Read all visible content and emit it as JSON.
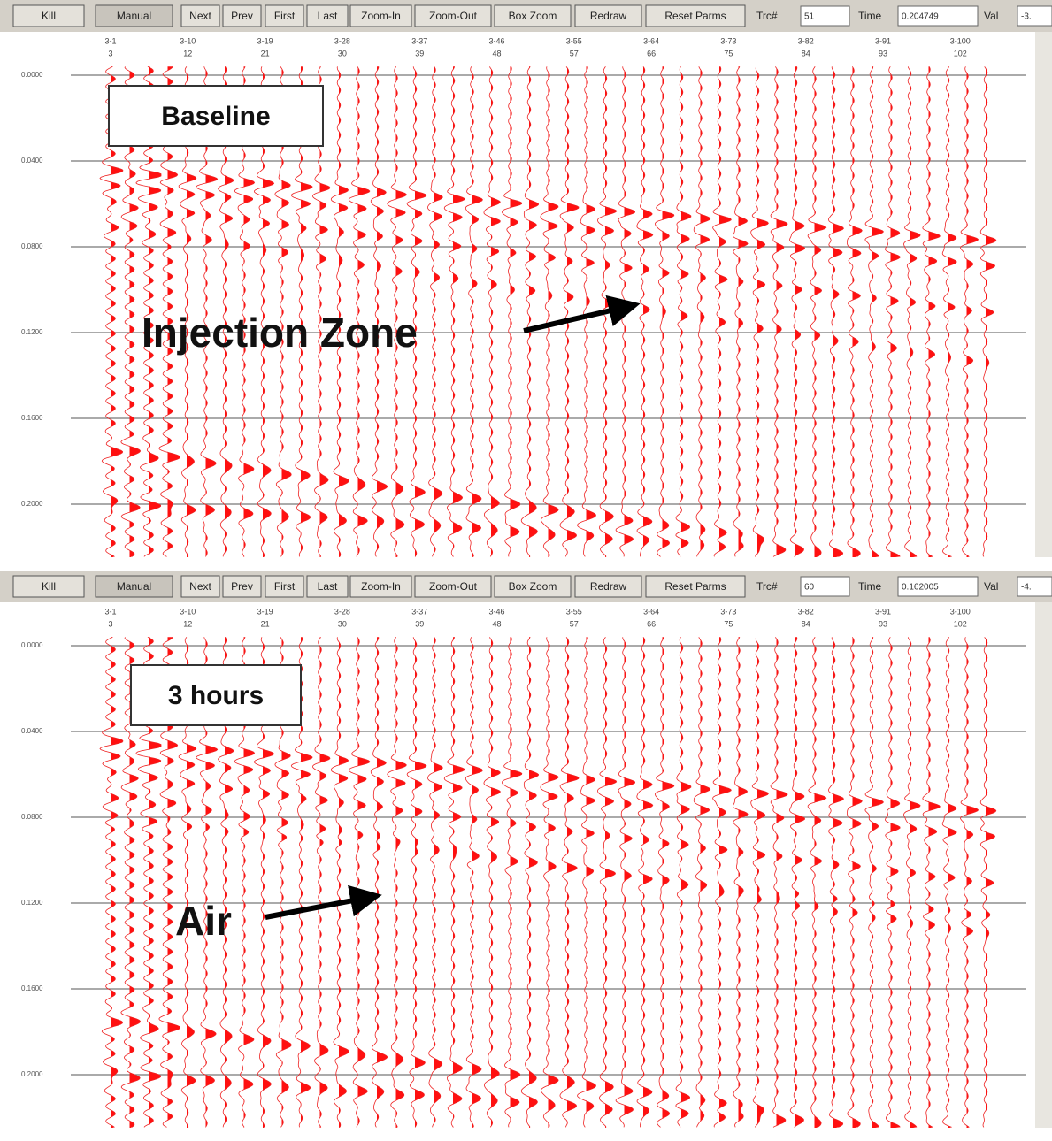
{
  "panels": [
    {
      "toolbar": {
        "buttons": [
          "Kill",
          "Manual",
          "Next",
          "Prev",
          "First",
          "Last",
          "Zoom-In",
          "Zoom-Out",
          "Box Zoom",
          "Redraw",
          "Reset Parms"
        ],
        "trace_label": "Trc#",
        "trace_value": "51",
        "time_label": "Time",
        "time_value": "0.204749",
        "val_label": "Val",
        "val_value": "-3."
      },
      "column_labels": [
        {
          "top": "3-1",
          "bottom": "3"
        },
        {
          "top": "3-10",
          "bottom": "12"
        },
        {
          "top": "3-19",
          "bottom": "21"
        },
        {
          "top": "3-28",
          "bottom": "30"
        },
        {
          "top": "3-37",
          "bottom": "39"
        },
        {
          "top": "3-46",
          "bottom": "48"
        },
        {
          "top": "3-55",
          "bottom": "57"
        },
        {
          "top": "3-64",
          "bottom": "66"
        },
        {
          "top": "3-73",
          "bottom": "75"
        },
        {
          "top": "3-82",
          "bottom": "84"
        },
        {
          "top": "3-91",
          "bottom": "93"
        },
        {
          "top": "3-100",
          "bottom": "102"
        }
      ],
      "time_labels": [
        "0.0000",
        "0.0400",
        "0.0800",
        "0.1200",
        "0.1600",
        "0.2000"
      ],
      "label": "Baseline",
      "arrow_text": "Injection Zone"
    },
    {
      "toolbar": {
        "buttons": [
          "Kill",
          "Manual",
          "Next",
          "Prev",
          "First",
          "Last",
          "Zoom-In",
          "Zoom-Out",
          "Box Zoom",
          "Redraw",
          "Reset Parms"
        ],
        "trace_label": "Trc#",
        "trace_value": "60",
        "time_label": "Time",
        "time_value": "0.162005",
        "val_label": "Val",
        "val_value": "-4."
      },
      "column_labels": [
        {
          "top": "3-1",
          "bottom": "3"
        },
        {
          "top": "3-10",
          "bottom": "12"
        },
        {
          "top": "3-19",
          "bottom": "21"
        },
        {
          "top": "3-28",
          "bottom": "30"
        },
        {
          "top": "3-37",
          "bottom": "39"
        },
        {
          "top": "3-46",
          "bottom": "48"
        },
        {
          "top": "3-55",
          "bottom": "57"
        },
        {
          "top": "3-64",
          "bottom": "66"
        },
        {
          "top": "3-73",
          "bottom": "75"
        },
        {
          "top": "3-82",
          "bottom": "84"
        },
        {
          "top": "3-91",
          "bottom": "93"
        },
        {
          "top": "3-100",
          "bottom": "102"
        }
      ],
      "time_labels": [
        "0.0000",
        "0.0400",
        "0.0800",
        "0.1200",
        "0.1600",
        "0.2000"
      ],
      "label": "3 hours",
      "arrow_text": "Air"
    }
  ]
}
